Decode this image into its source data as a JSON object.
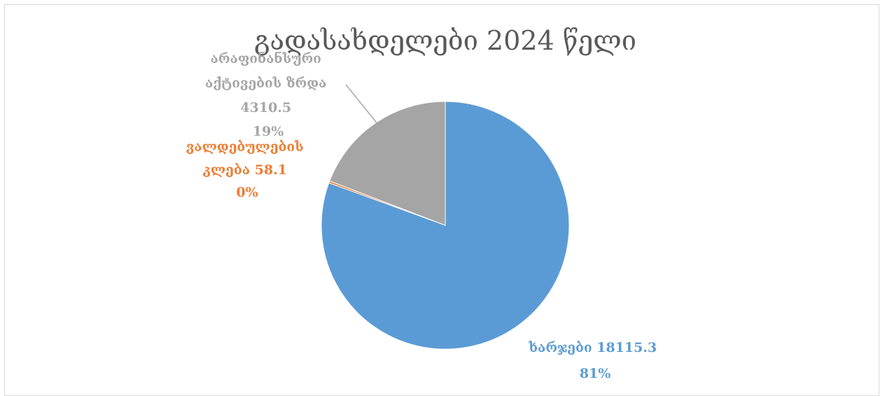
{
  "chart_data": {
    "type": "pie",
    "title": "გადასახდელები 2024 წელი",
    "categories": [
      "ხარჯები",
      "ვალდებულების კლება",
      "არაფინანსური აქტივების ზრდა"
    ],
    "values": [
      18115.3,
      58.1,
      4310.5
    ],
    "percent_labels": [
      "81%",
      "0%",
      "19%"
    ],
    "colors": [
      "#5b9bd5",
      "#ed7d31",
      "#a5a5a5"
    ],
    "labels": [
      {
        "lines": [
          "ხარჯები 18115.3",
          "81%"
        ]
      },
      {
        "lines": [
          "ვალდებულების",
          "კლება 58.1",
          "0%"
        ]
      },
      {
        "lines": [
          "არაფინანსური",
          "აქტივების ზრდა",
          "4310.5",
          "19%"
        ]
      }
    ],
    "legend": "none"
  }
}
